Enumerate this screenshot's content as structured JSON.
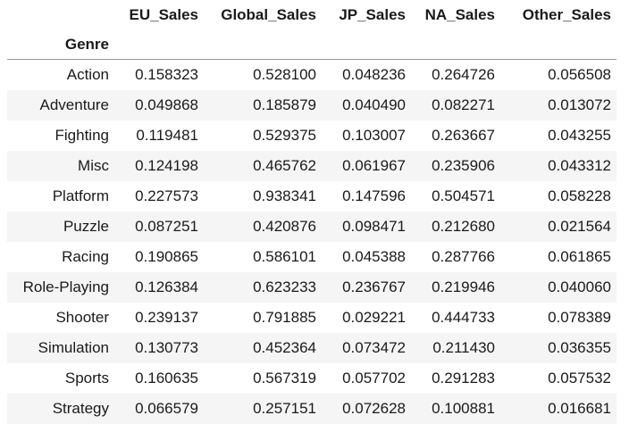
{
  "table": {
    "columns": [
      "EU_Sales",
      "Global_Sales",
      "JP_Sales",
      "NA_Sales",
      "Other_Sales"
    ],
    "index_name": "Genre",
    "rows": [
      {
        "label": "Action",
        "values": [
          "0.158323",
          "0.528100",
          "0.048236",
          "0.264726",
          "0.056508"
        ]
      },
      {
        "label": "Adventure",
        "values": [
          "0.049868",
          "0.185879",
          "0.040490",
          "0.082271",
          "0.013072"
        ]
      },
      {
        "label": "Fighting",
        "values": [
          "0.119481",
          "0.529375",
          "0.103007",
          "0.263667",
          "0.043255"
        ]
      },
      {
        "label": "Misc",
        "values": [
          "0.124198",
          "0.465762",
          "0.061967",
          "0.235906",
          "0.043312"
        ]
      },
      {
        "label": "Platform",
        "values": [
          "0.227573",
          "0.938341",
          "0.147596",
          "0.504571",
          "0.058228"
        ]
      },
      {
        "label": "Puzzle",
        "values": [
          "0.087251",
          "0.420876",
          "0.098471",
          "0.212680",
          "0.021564"
        ]
      },
      {
        "label": "Racing",
        "values": [
          "0.190865",
          "0.586101",
          "0.045388",
          "0.287766",
          "0.061865"
        ]
      },
      {
        "label": "Role-Playing",
        "values": [
          "0.126384",
          "0.623233",
          "0.236767",
          "0.219946",
          "0.040060"
        ]
      },
      {
        "label": "Shooter",
        "values": [
          "0.239137",
          "0.791885",
          "0.029221",
          "0.444733",
          "0.078389"
        ]
      },
      {
        "label": "Simulation",
        "values": [
          "0.130773",
          "0.452364",
          "0.073472",
          "0.211430",
          "0.036355"
        ]
      },
      {
        "label": "Sports",
        "values": [
          "0.160635",
          "0.567319",
          "0.057702",
          "0.291283",
          "0.057532"
        ]
      },
      {
        "label": "Strategy",
        "values": [
          "0.066579",
          "0.257151",
          "0.072628",
          "0.100881",
          "0.016681"
        ]
      }
    ]
  },
  "colors": {
    "stripe": "#f5f5f5",
    "header_rule": "#9a9a9a",
    "text": "#1a1a1a"
  }
}
